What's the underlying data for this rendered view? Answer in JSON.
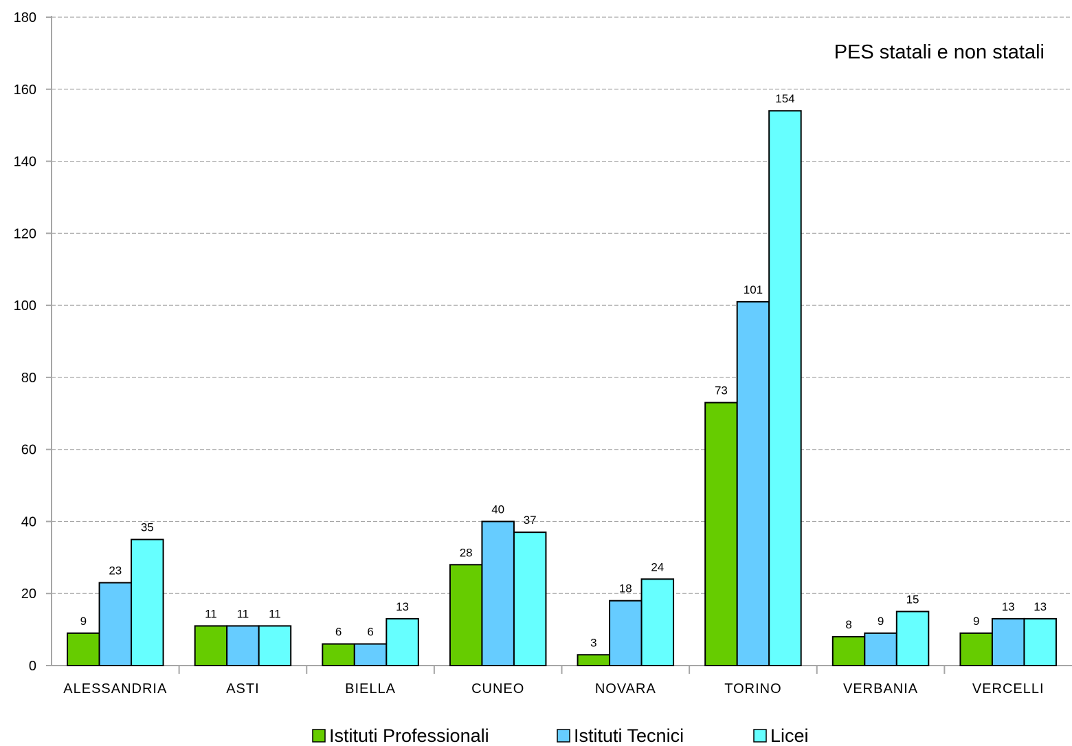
{
  "chart_data": {
    "type": "bar",
    "title": "PES statali e non statali",
    "xlabel": "",
    "ylabel": "",
    "ylim": [
      0,
      180
    ],
    "yticks": [
      0,
      20,
      40,
      60,
      80,
      100,
      120,
      140,
      160,
      180
    ],
    "grid": true,
    "legend_position": "bottom",
    "categories": [
      "ALESSANDRIA",
      "ASTI",
      "BIELLA",
      "CUNEO",
      "NOVARA",
      "TORINO",
      "VERBANIA",
      "VERCELLI"
    ],
    "series": [
      {
        "name": "Istituti Professionali",
        "color": "#66cc00",
        "values": [
          9,
          11,
          6,
          28,
          3,
          73,
          8,
          9
        ]
      },
      {
        "name": "Istituti Tecnici",
        "color": "#66ccff",
        "values": [
          23,
          11,
          6,
          40,
          18,
          101,
          9,
          13
        ]
      },
      {
        "name": "Licei",
        "color": "#66ffff",
        "values": [
          35,
          11,
          13,
          37,
          24,
          154,
          15,
          13
        ]
      }
    ]
  }
}
